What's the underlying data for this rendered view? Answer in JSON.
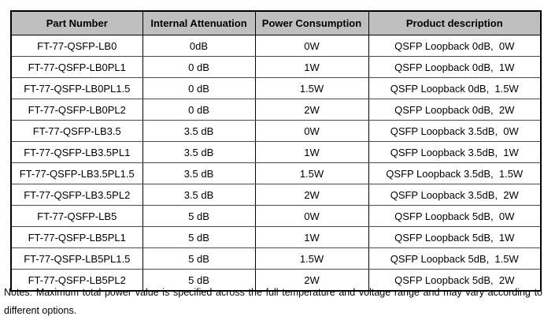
{
  "table": {
    "headers": [
      "Part Number",
      "Internal Attenuation",
      "Power Consumption",
      "Product description"
    ],
    "rows": [
      {
        "part": "FT-77-QSFP-LB0",
        "attenuation": "0dB",
        "power": "0W",
        "description": "QSFP Loopback 0dB,  0W"
      },
      {
        "part": "FT-77-QSFP-LB0PL1",
        "attenuation": "0 dB",
        "power": "1W",
        "description": "QSFP Loopback 0dB,  1W"
      },
      {
        "part": "FT-77-QSFP-LB0PL1.5",
        "attenuation": "0 dB",
        "power": "1.5W",
        "description": "QSFP Loopback 0dB,  1.5W"
      },
      {
        "part": "FT-77-QSFP-LB0PL2",
        "attenuation": "0 dB",
        "power": "2W",
        "description": "QSFP Loopback 0dB,  2W"
      },
      {
        "part": "FT-77-QSFP-LB3.5",
        "attenuation": "3.5 dB",
        "power": "0W",
        "description": "QSFP Loopback 3.5dB,  0W"
      },
      {
        "part": "FT-77-QSFP-LB3.5PL1",
        "attenuation": "3.5 dB",
        "power": "1W",
        "description": "QSFP Loopback 3.5dB,  1W"
      },
      {
        "part": "FT-77-QSFP-LB3.5PL1.5",
        "attenuation": "3.5 dB",
        "power": "1.5W",
        "description": "QSFP Loopback 3.5dB,  1.5W"
      },
      {
        "part": "FT-77-QSFP-LB3.5PL2",
        "attenuation": "3.5 dB",
        "power": "2W",
        "description": "QSFP Loopback 3.5dB,  2W"
      },
      {
        "part": "FT-77-QSFP-LB5",
        "attenuation": "5 dB",
        "power": "0W",
        "description": "QSFP Loopback 5dB,  0W"
      },
      {
        "part": "FT-77-QSFP-LB5PL1",
        "attenuation": "5 dB",
        "power": "1W",
        "description": "QSFP Loopback 5dB,  1W"
      },
      {
        "part": "FT-77-QSFP-LB5PL1.5",
        "attenuation": "5 dB",
        "power": "1.5W",
        "description": "QSFP Loopback 5dB,  1.5W"
      },
      {
        "part": "FT-77-QSFP-LB5PL2",
        "attenuation": "5 dB",
        "power": "2W",
        "description": "QSFP Loopback 5dB,  2W"
      }
    ]
  },
  "notes": {
    "line1": "Notes: Maximum total power value is specified across the full temperature and voltage range and may vary according to",
    "line2": "different options."
  },
  "colors": {
    "header_bg": "#bfbfbf",
    "border": "#000000",
    "background": "#ffffff"
  }
}
